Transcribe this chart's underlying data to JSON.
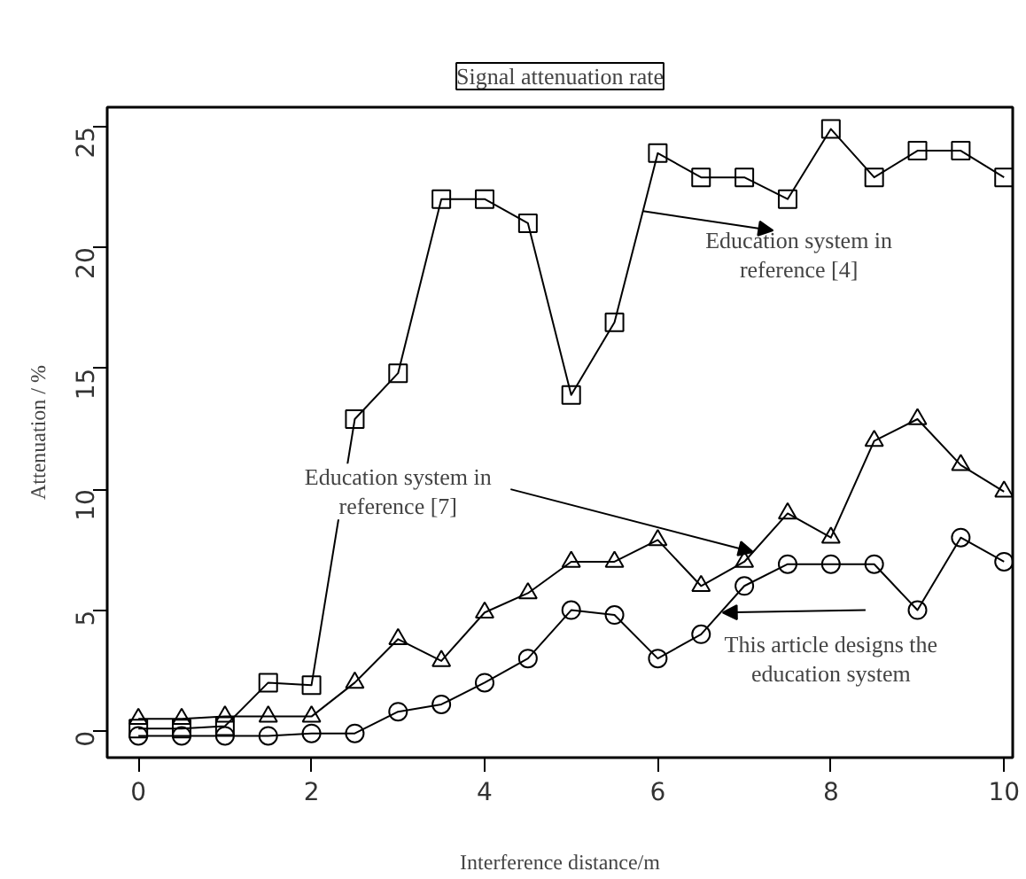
{
  "chart_data": {
    "type": "line",
    "title": "Signal attenuation rate",
    "xlabel": "Interference distance/m",
    "ylabel": "Attenuation / %",
    "x": [
      0,
      0.5,
      1,
      1.5,
      2,
      2.5,
      3,
      3.5,
      4,
      4.5,
      5,
      5.5,
      6,
      6.5,
      7,
      7.5,
      8,
      8.5,
      9,
      9.5,
      10
    ],
    "series": [
      {
        "color": "#000000",
        "marker": "square",
        "values": [
          0.1,
          0.1,
          0.2,
          2,
          1.9,
          12.9,
          14.8,
          22,
          22,
          21,
          13.9,
          16.9,
          23.9,
          22.9,
          22.9,
          22,
          24.9,
          22.9,
          24,
          24,
          22.9
        ]
      },
      {
        "color": "#000000",
        "marker": "triangle",
        "values": [
          0.5,
          0.5,
          0.6,
          0.6,
          0.6,
          2,
          3.8,
          2.9,
          4.9,
          5.7,
          7,
          7,
          7.9,
          6,
          7,
          9,
          8,
          12,
          12.9,
          11,
          9.9
        ]
      },
      {
        "color": "#000000",
        "marker": "circle",
        "values": [
          -0.2,
          -0.2,
          -0.2,
          -0.2,
          -0.1,
          -0.1,
          0.8,
          1.1,
          2,
          3,
          5,
          4.8,
          3,
          4,
          6,
          6.9,
          6.9,
          6.9,
          5,
          8,
          7
        ]
      }
    ],
    "annotations": [
      {
        "text": "Education system in\nreference [4]",
        "x": 5.83,
        "y": 21.5
      },
      {
        "text": "Education system in\nreference [7]",
        "x": 7.1,
        "y": 7.4
      },
      {
        "text": "This article designs the\neducation system",
        "x": 6.75,
        "y": 4.9
      }
    ],
    "xlim": [
      -0.36,
      10.1
    ],
    "ylim": [
      -1.1,
      25.8
    ],
    "xticks": [
      0,
      2,
      4,
      6,
      8,
      10
    ],
    "yticks": [
      0,
      5,
      10,
      15,
      20,
      25
    ],
    "grid": false,
    "line_style": "solid"
  }
}
